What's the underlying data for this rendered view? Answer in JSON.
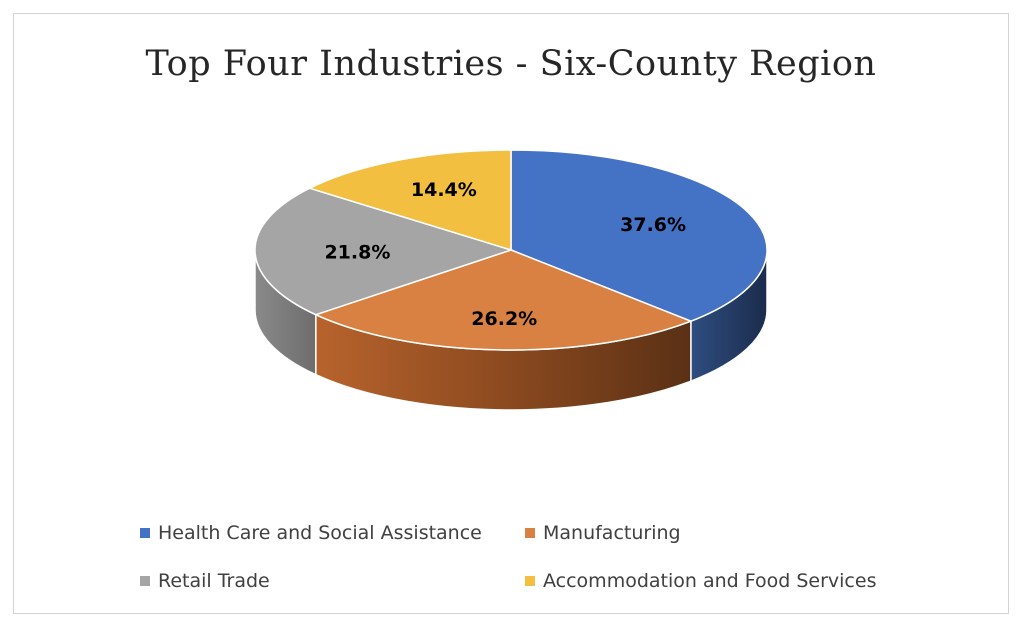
{
  "chart_data": {
    "type": "pie",
    "title": "Top Four Industries - Six-County Region",
    "categories": [
      "Health Care and Social Assistance",
      "Manufacturing",
      "Retail Trade",
      "Accommodation and Food Services"
    ],
    "values": [
      37.6,
      26.2,
      21.8,
      14.4
    ],
    "labels": [
      "37.6%",
      "26.2%",
      "21.8%",
      "14.4%"
    ],
    "colors": [
      "#4472c4",
      "#d98143",
      "#a5a5a5",
      "#f2bf40"
    ],
    "legend_position": "bottom",
    "style": "3d"
  }
}
